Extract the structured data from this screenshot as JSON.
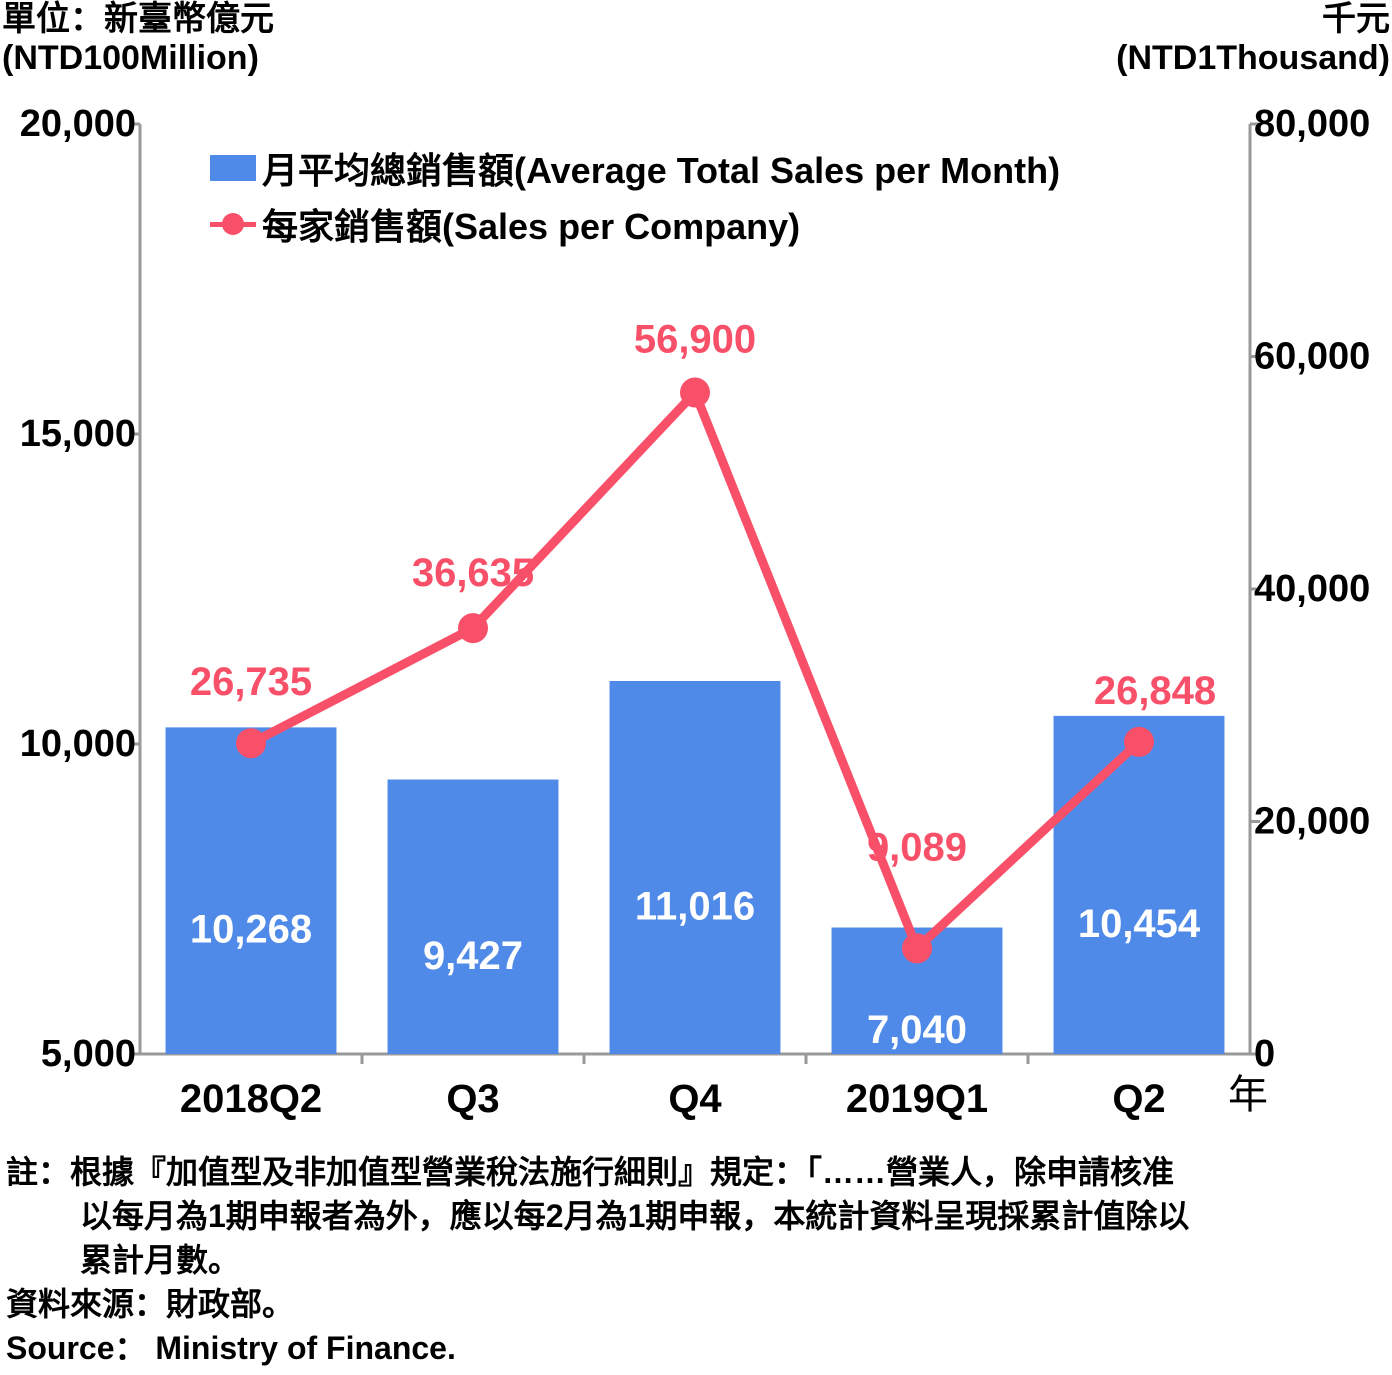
{
  "chart_data": {
    "type": "bar",
    "categories": [
      "2018Q2",
      "Q3",
      "Q4",
      "2019Q1",
      "Q2"
    ],
    "x_unit": "年",
    "y_left": {
      "unit_zh": "單位：新臺幣億元",
      "unit_en": "(NTD100Million)",
      "ylim": [
        5000,
        20000
      ],
      "ticks": [
        5000,
        10000,
        15000,
        20000
      ],
      "tick_labels": [
        "5,000",
        "10,000",
        "15,000",
        "20,000"
      ]
    },
    "y_right": {
      "unit_zh": "千元",
      "unit_en": "(NTD1Thousand)",
      "ylim": [
        0,
        80000
      ],
      "ticks": [
        0,
        20000,
        40000,
        60000,
        80000
      ],
      "tick_labels": [
        "0",
        "20,000",
        "40,000",
        "60,000",
        "80,000"
      ]
    },
    "series": [
      {
        "name": "月平均總銷售額(Average Total Sales per Month)",
        "type": "bar",
        "axis": "left",
        "color": "#4f8ae8",
        "values": [
          10268,
          9427,
          11016,
          7040,
          10454
        ],
        "labels": [
          "10,268",
          "9,427",
          "11,016",
          "7,040",
          "10,454"
        ]
      },
      {
        "name": "每家銷售額(Sales per Company)",
        "type": "line",
        "axis": "right",
        "color": "#f9506a",
        "values": [
          26735,
          36635,
          56900,
          9089,
          26848
        ],
        "labels": [
          "26,735",
          "36,635",
          "56,900",
          "9,089",
          "26,848"
        ]
      }
    ],
    "legend_position": "top-left"
  },
  "notes": {
    "note_line1": "註：根據『加值型及非加值型營業稅法施行細則』規定：「……營業人，除申請核准",
    "note_line2": "以每月為1期申報者為外，應以每2月為1期申報，本統計資料呈現採累計值除以",
    "note_line3": "累計月數。",
    "source_zh": "資料來源：財政部。",
    "source_en": "Source： Ministry of Finance."
  },
  "colors": {
    "bar": "#4f8ae8",
    "line": "#f9506a",
    "axis": "#999999"
  }
}
